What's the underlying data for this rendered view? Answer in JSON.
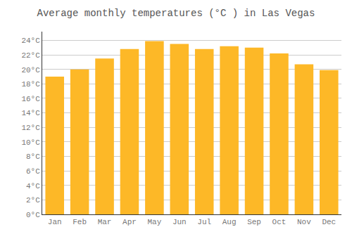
{
  "chart_data": {
    "type": "bar",
    "title": "Average monthly temperatures (°C ) in Las Vegas",
    "categories": [
      "Jan",
      "Feb",
      "Mar",
      "Apr",
      "May",
      "Jun",
      "Jul",
      "Aug",
      "Sep",
      "Oct",
      "Nov",
      "Dec"
    ],
    "values": [
      19.0,
      20.0,
      21.5,
      22.8,
      23.9,
      23.5,
      22.8,
      23.2,
      23.0,
      22.2,
      20.7,
      19.9
    ],
    "color": "#FDB827",
    "ylim": [
      0,
      25.2
    ],
    "yticks": [
      {
        "value": 0,
        "label": "0°C"
      },
      {
        "value": 2,
        "label": "2°C"
      },
      {
        "value": 4,
        "label": "4°C"
      },
      {
        "value": 6,
        "label": "6°C"
      },
      {
        "value": 8,
        "label": "8°C"
      },
      {
        "value": 10,
        "label": "10°C"
      },
      {
        "value": 12,
        "label": "12°C"
      },
      {
        "value": 14,
        "label": "14°C"
      },
      {
        "value": 16,
        "label": "16°C"
      },
      {
        "value": 18,
        "label": "18°C"
      },
      {
        "value": 20,
        "label": "20°C"
      },
      {
        "value": 22,
        "label": "22°C"
      },
      {
        "value": 24,
        "label": "24°C"
      }
    ],
    "grid": true
  }
}
